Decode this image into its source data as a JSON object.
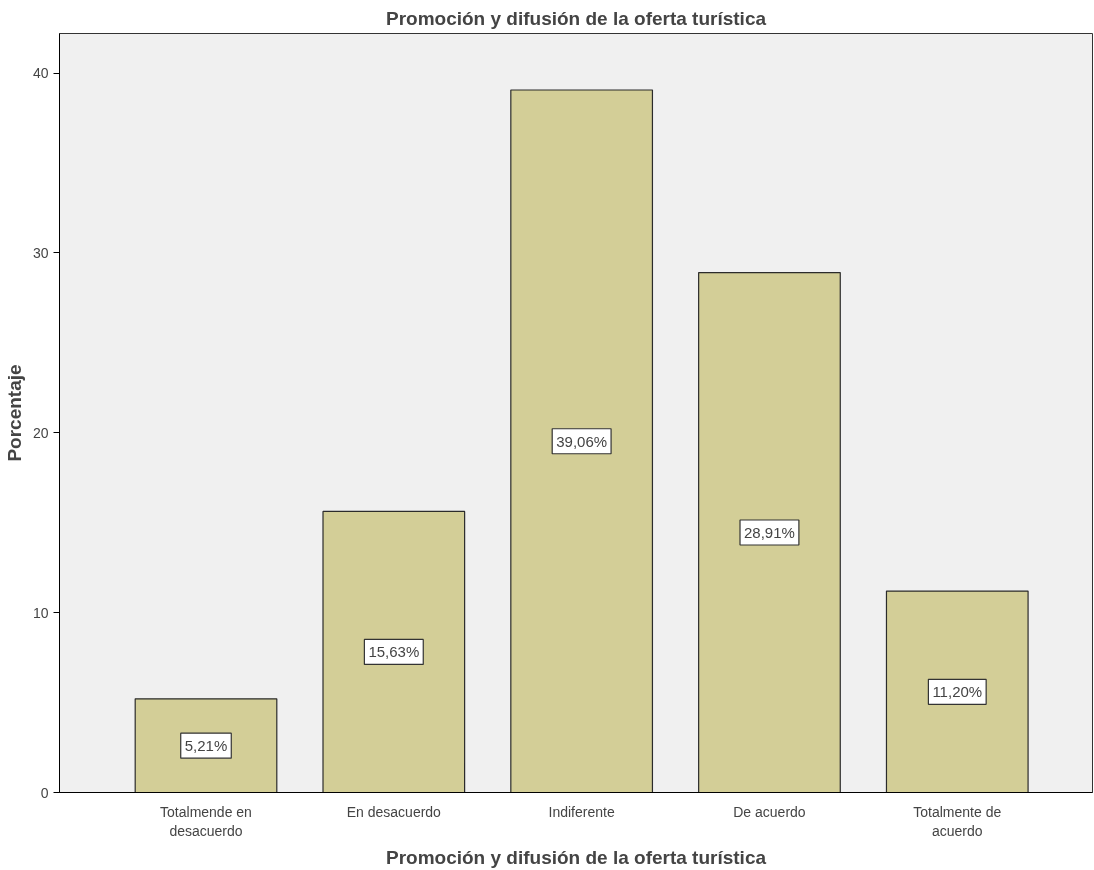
{
  "chart_data": {
    "type": "bar",
    "title": "Promoción y difusión de la oferta turística",
    "xlabel": "Promoción y difusión de la oferta turística",
    "ylabel": "Porcentaje",
    "categories": [
      "Totalmende en desacuerdo",
      "En desacuerdo",
      "Indiferente",
      "De acuerdo",
      "Totalmente de acuerdo"
    ],
    "values": [
      5.21,
      15.63,
      39.06,
      28.91,
      11.2
    ],
    "value_labels": [
      "5,21%",
      "15,63%",
      "39,06%",
      "28,91%",
      "11,20%"
    ],
    "color": "#d3ce97",
    "ylim": [
      0,
      42.2
    ],
    "yticks": [
      0,
      10,
      20,
      30,
      40
    ],
    "grid": false
  }
}
